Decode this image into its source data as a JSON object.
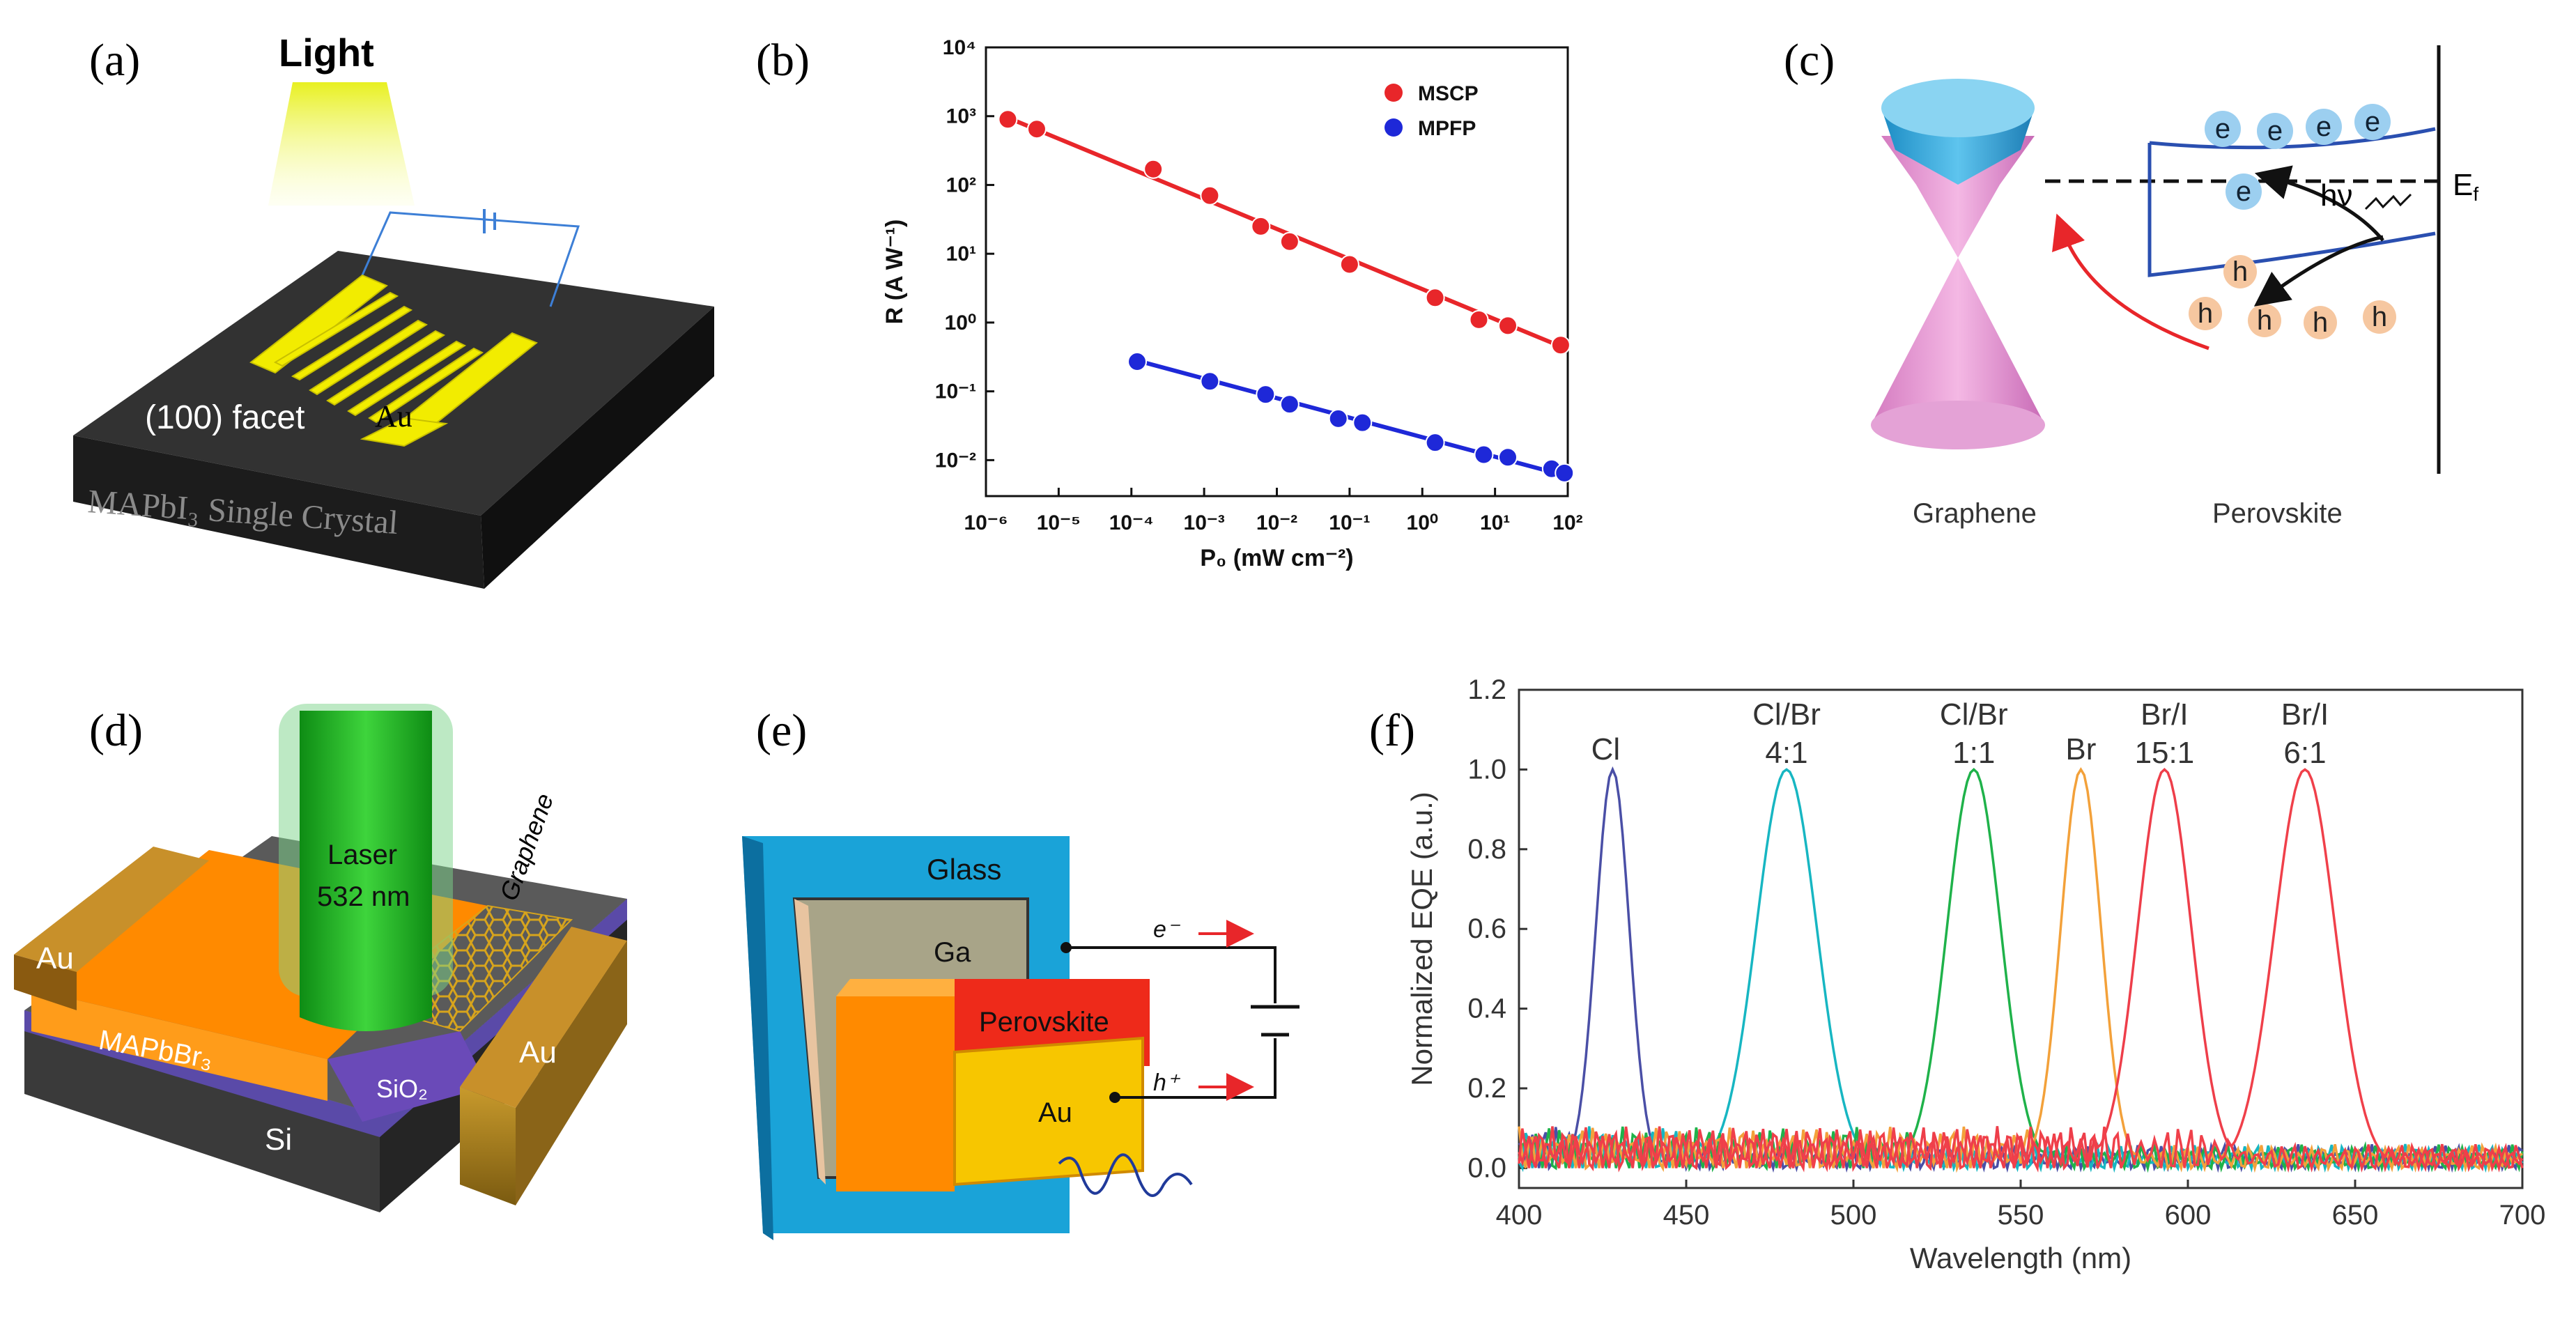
{
  "colors": {
    "red": "#e8262a",
    "blue": "#1e28d8",
    "gold": "#f2ec00",
    "chip_dark": "#2c2c2c",
    "cone_blue": "#2fa4dc",
    "cone_pink": "#e48ad0",
    "glass_blue": "#1aa3d8",
    "orange": "#ff8a00",
    "green_laser": "#18b41c"
  },
  "panels": {
    "a": {
      "letter": "(a)",
      "light": "Light",
      "facet": "(100) facet",
      "au": "Au",
      "crystal": "MAPbI₃  Single Crystal"
    },
    "b": {
      "letter": "(b)"
    },
    "c": {
      "letter": "(c)",
      "graphene": "Graphene",
      "perovskite": "Perovskite",
      "ef": "E",
      "ef_sub": "f",
      "hv": "hν",
      "e": "e",
      "h": "h"
    },
    "d": {
      "letter": "(d)",
      "laser": "Laser",
      "wavelength": "532 nm",
      "graphene": "Graphene",
      "au_left": "Au",
      "au_right": "Au",
      "mapbbr3": "MAPbBr₃",
      "sio2": "SiO₂",
      "si": "Si"
    },
    "e": {
      "letter": "(e)",
      "glass": "Glass",
      "ga": "Ga",
      "perovskite": "Perovskite",
      "au": "Au",
      "electron": "e⁻",
      "hole": "h⁺"
    },
    "f": {
      "letter": "(f)"
    }
  },
  "chart_data": [
    {
      "panel": "b",
      "type": "scatter",
      "xlabel": "P₀ (mW cm⁻²)",
      "ylabel": "R (A W⁻¹)",
      "xscale": "log",
      "yscale": "log",
      "xlim": [
        1e-06,
        100
      ],
      "ylim": [
        0.003,
        10000
      ],
      "x_ticks": [
        "10⁻⁶",
        "10⁻⁵",
        "10⁻⁴",
        "10⁻³",
        "10⁻²",
        "10⁻¹",
        "10⁰",
        "10¹",
        "10²"
      ],
      "y_ticks": [
        "10⁻²",
        "10⁻¹",
        "10⁰",
        "10¹",
        "10²",
        "10³",
        "10⁴"
      ],
      "legend_position": "top-right",
      "series": [
        {
          "name": "MSCP",
          "color": "#e8262a",
          "x": [
            2e-06,
            5e-06,
            0.0002,
            0.0012,
            0.006,
            0.015,
            0.1,
            1.5,
            6,
            15,
            80
          ],
          "y": [
            900,
            650,
            170,
            70,
            25,
            15,
            7,
            2.3,
            1.1,
            0.9,
            0.47
          ],
          "fit": [
            [
              2e-06,
              950
            ],
            [
              80,
              0.45
            ]
          ]
        },
        {
          "name": "MPFP",
          "color": "#1e28d8",
          "x": [
            0.00012,
            0.0012,
            0.007,
            0.015,
            0.07,
            0.15,
            1.5,
            7,
            15,
            60,
            90
          ],
          "y": [
            0.27,
            0.14,
            0.09,
            0.065,
            0.04,
            0.035,
            0.018,
            0.012,
            0.011,
            0.0075,
            0.0065
          ],
          "fit": [
            [
              0.00012,
              0.28
            ],
            [
              90,
              0.006
            ]
          ]
        }
      ]
    },
    {
      "panel": "f",
      "type": "line",
      "xlabel": "Wavelength (nm)",
      "ylabel": "Normalized EQE (a.u.)",
      "xlim": [
        400,
        700
      ],
      "ylim": [
        -0.05,
        1.2
      ],
      "x_ticks": [
        400,
        450,
        500,
        550,
        600,
        650,
        700
      ],
      "y_ticks": [
        "0.0",
        "0.2",
        "0.4",
        "0.6",
        "0.8",
        "1.0",
        "1.2"
      ],
      "series": [
        {
          "name": "Cl",
          "label": "Cl",
          "color": "#4a4fa6",
          "peak": 428,
          "width": 5
        },
        {
          "name": "Cl/Br 4:1",
          "label": "Cl/Br",
          "ratio": "4:1",
          "color": "#17b6c2",
          "peak": 480,
          "width": 9
        },
        {
          "name": "Cl/Br 1:1",
          "label": "Cl/Br",
          "ratio": "1:1",
          "color": "#1fb24a",
          "peak": 536,
          "width": 8
        },
        {
          "name": "Br",
          "label": "Br",
          "ratio": "",
          "color": "#f3a13a",
          "peak": 568,
          "width": 6
        },
        {
          "name": "Br/I 15:1",
          "label": "Br/I",
          "ratio": "15:1",
          "color": "#ee3e4a",
          "peak": 593,
          "width": 8
        },
        {
          "name": "Br/I 6:1",
          "label": "Br/I",
          "ratio": "6:1",
          "color": "#f0404a",
          "peak": 635,
          "width": 9
        }
      ]
    }
  ]
}
